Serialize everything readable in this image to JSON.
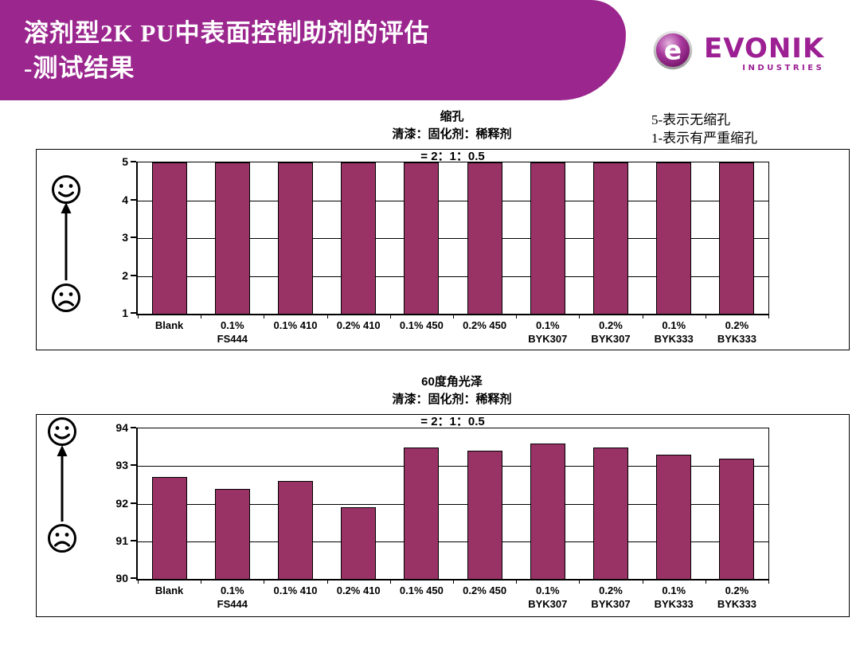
{
  "header": {
    "title_line1": "溶剂型2K PU中表面控制助剂的评估",
    "title_line2": "-测试结果",
    "bg_color": "#9a268e",
    "text_color": "#ffffff"
  },
  "logo": {
    "badge_letter": "e",
    "brand": "EVONIK",
    "industries": "INDUSTRIES",
    "color": "#9c1f93"
  },
  "legend_note": {
    "line1": "5-表示无缩孔",
    "line2": "1-表示有严重缩孔"
  },
  "chart_data": [
    {
      "type": "bar",
      "title": "缩孔",
      "subtitle": "清漆：固化剂：稀释剂",
      "ratio_line": "= 2：1：0.5",
      "categories": [
        "Blank",
        "0.1%\nFS444",
        "0.1% 410",
        "0.2% 410",
        "0.1% 450",
        "0.2% 450",
        "0.1%\nBYK307",
        "0.2%\nBYK307",
        "0.1%\nBYK333",
        "0.2%\nBYK333"
      ],
      "values": [
        5,
        5,
        5,
        5,
        5,
        5,
        5,
        5,
        5,
        5
      ],
      "ylim": [
        1,
        5
      ],
      "yticks": [
        1,
        2,
        3,
        4,
        5
      ],
      "bar_color": "#993366",
      "grid": true,
      "legend": "none",
      "good_end": "top",
      "scale_icons": [
        "happy-face",
        "sad-face"
      ]
    },
    {
      "type": "bar",
      "title": "60度角光泽",
      "subtitle": "清漆：固化剂：稀释剂",
      "ratio_line": "= 2：1：0.5",
      "categories": [
        "Blank",
        "0.1%\nFS444",
        "0.1% 410",
        "0.2% 410",
        "0.1% 450",
        "0.2% 450",
        "0.1%\nBYK307",
        "0.2%\nBYK307",
        "0.1%\nBYK333",
        "0.2%\nBYK333"
      ],
      "values": [
        92.7,
        92.4,
        92.6,
        91.9,
        93.5,
        93.4,
        93.6,
        93.5,
        93.3,
        93.2
      ],
      "ylim": [
        90,
        94
      ],
      "yticks": [
        90,
        91,
        92,
        93,
        94
      ],
      "bar_color": "#993366",
      "grid": true,
      "legend": "none",
      "good_end": "top",
      "scale_icons": [
        "happy-face",
        "sad-face"
      ]
    }
  ]
}
